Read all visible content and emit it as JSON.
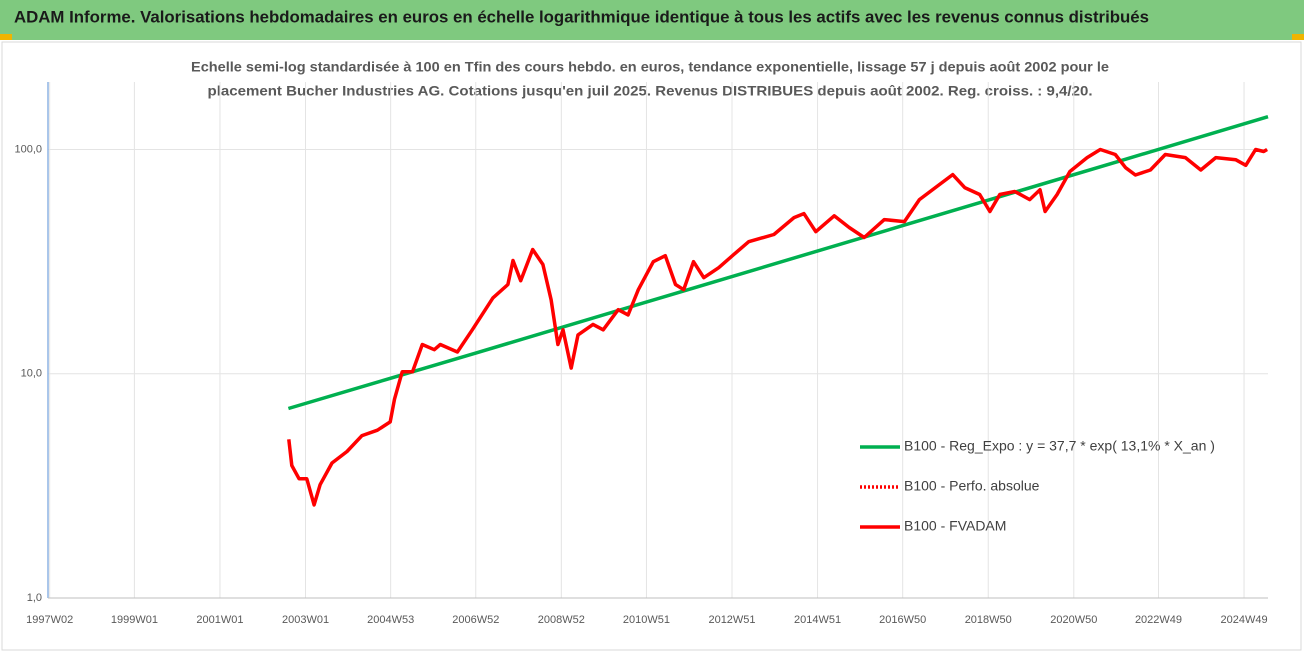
{
  "chart_data": {
    "type": "line",
    "title": "ADAM Informe. Valorisations hebdomadaires en euros en échelle logarithmique identique à tous les actifs avec les revenus connus distribués",
    "subtitle": [
      "Echelle semi-log standardisée à 100 en Tfin des cours hebdo. en euros, tendance exponentielle, lissage 57 j depuis août 2002 pour le",
      "placement Bucher Industries AG. Cotations jusqu'en juil 2025. Revenus DISTRIBUES depuis août 2002. Reg. croiss. : 9,4/20."
    ],
    "ylog": true,
    "grid": true,
    "legend": "bottom-right",
    "ylim": [
      1,
      200
    ],
    "yticks": [
      {
        "value": 1,
        "label": "1,0"
      },
      {
        "value": 10,
        "label": "10,0"
      },
      {
        "value": 100,
        "label": "100,0"
      }
    ],
    "xlim": [
      1996.98,
      2025.5
    ],
    "xticks": [
      {
        "value": 1997.02,
        "label": "1997W02"
      },
      {
        "value": 1999.0,
        "label": "1999W01"
      },
      {
        "value": 2001.0,
        "label": "2001W01"
      },
      {
        "value": 2003.0,
        "label": "2003W01"
      },
      {
        "value": 2004.99,
        "label": "2004W53"
      },
      {
        "value": 2006.98,
        "label": "2006W52"
      },
      {
        "value": 2008.98,
        "label": "2008W52"
      },
      {
        "value": 2010.97,
        "label": "2010W51"
      },
      {
        "value": 2012.97,
        "label": "2012W51"
      },
      {
        "value": 2014.97,
        "label": "2014W51"
      },
      {
        "value": 2016.96,
        "label": "2016W50"
      },
      {
        "value": 2018.96,
        "label": "2018W50"
      },
      {
        "value": 2020.96,
        "label": "2020W50"
      },
      {
        "value": 2022.94,
        "label": "2022W49"
      },
      {
        "value": 2024.94,
        "label": "2024W49"
      }
    ],
    "series": [
      {
        "name": "B100 - Reg_Expo : y = 37,7 * exp( 13,1% *  X_an )",
        "color": "#00b050",
        "dash": "solid",
        "x": [
          2002.6,
          2007.0,
          2012.0,
          2017.0,
          2022.0,
          2025.5
        ],
        "values": [
          7.0,
          12.4,
          23.9,
          46.0,
          88.5,
          140
        ]
      },
      {
        "name": "B100 - Perfo. absolue",
        "color": "#ff0000",
        "dash": "dotted",
        "x": [],
        "values": []
      },
      {
        "name": "B100 - FVADAM",
        "color": "#ff0000",
        "dash": "solid",
        "x": [
          2002.61,
          2002.68,
          2002.85,
          2003.03,
          2003.2,
          2003.34,
          2003.62,
          2003.97,
          2004.32,
          2004.68,
          2004.98,
          2005.08,
          2005.26,
          2005.5,
          2005.73,
          2006.01,
          2006.15,
          2006.55,
          2006.9,
          2007.38,
          2007.73,
          2007.85,
          2008.03,
          2008.31,
          2008.55,
          2008.74,
          2008.9,
          2009.02,
          2009.21,
          2009.37,
          2009.72,
          2009.96,
          2010.31,
          2010.54,
          2010.78,
          2011.13,
          2011.41,
          2011.65,
          2011.84,
          2012.07,
          2012.31,
          2012.66,
          2013.01,
          2013.36,
          2013.95,
          2014.42,
          2014.65,
          2014.93,
          2015.36,
          2015.71,
          2016.06,
          2016.53,
          2017.0,
          2017.35,
          2017.82,
          2018.13,
          2018.41,
          2018.76,
          2019.0,
          2019.23,
          2019.58,
          2019.93,
          2020.17,
          2020.29,
          2020.57,
          2020.87,
          2021.27,
          2021.58,
          2021.93,
          2022.17,
          2022.4,
          2022.75,
          2023.1,
          2023.57,
          2023.93,
          2024.28,
          2024.75,
          2024.98,
          2025.21,
          2025.4,
          2025.48
        ],
        "values": [
          5.1,
          3.9,
          3.4,
          3.4,
          2.6,
          3.2,
          4.0,
          4.5,
          5.3,
          5.6,
          6.1,
          7.7,
          10.2,
          10.2,
          13.5,
          12.8,
          13.5,
          12.5,
          15.7,
          21.8,
          25,
          32,
          26,
          35.8,
          30.7,
          21.4,
          13.5,
          15.7,
          10.6,
          14.9,
          16.6,
          15.7,
          19.3,
          18.3,
          23.7,
          31.6,
          33.6,
          25,
          23.7,
          31.6,
          26.8,
          29.7,
          34,
          38.8,
          41.8,
          49.7,
          51.8,
          43,
          50.6,
          44.9,
          40.5,
          48.7,
          47.7,
          59.8,
          69.8,
          77.3,
          67.6,
          63,
          52.9,
          63,
          65,
          59.8,
          66.2,
          52.9,
          63,
          79.8,
          92,
          100,
          95,
          83,
          77,
          81,
          95,
          92,
          81,
          92,
          90,
          85,
          100,
          98,
          100
        ]
      }
    ]
  }
}
